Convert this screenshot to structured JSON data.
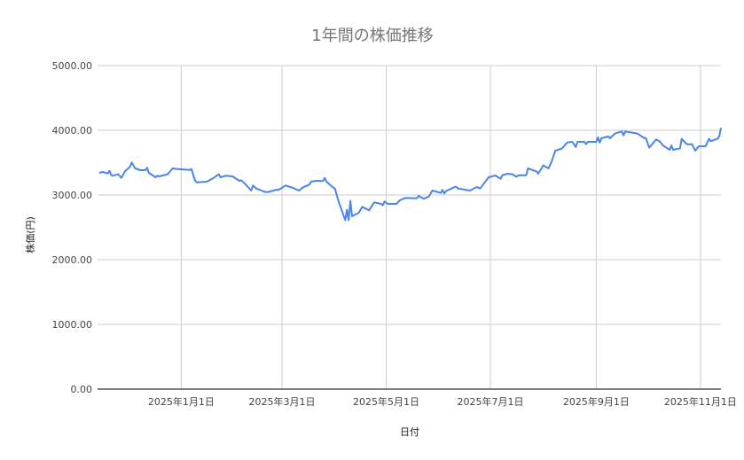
{
  "chart_data": {
    "type": "line",
    "title": "1年間の株価推移",
    "xlabel": "日付",
    "ylabel": "株価(円)",
    "ylim": [
      0,
      5000
    ],
    "xlim": [
      "2024-11-13",
      "2025-11-13"
    ],
    "grid": true,
    "legend": "none",
    "line_color": "#4a86e8",
    "y_ticks": [
      "0.00",
      "1000.00",
      "2000.00",
      "3000.00",
      "4000.00",
      "5000.00"
    ],
    "y_tick_values": [
      0,
      1000,
      2000,
      3000,
      4000,
      5000
    ],
    "x_ticks": [
      {
        "date": "2025-01-01",
        "label": "2025年1月1日"
      },
      {
        "date": "2025-03-01",
        "label": "2025年3月1日"
      },
      {
        "date": "2025-05-01",
        "label": "2025年5月1日"
      },
      {
        "date": "2025-07-01",
        "label": "2025年7月1日"
      },
      {
        "date": "2025-09-01",
        "label": "2025年9月1日"
      },
      {
        "date": "2025-11-01",
        "label": "2025年11月1日"
      }
    ],
    "series": [
      {
        "points": [
          [
            "2024-11-14",
            3342
          ],
          [
            "2024-11-16",
            3356
          ],
          [
            "2024-11-19",
            3333
          ],
          [
            "2024-11-20",
            3374
          ],
          [
            "2024-11-21",
            3310
          ],
          [
            "2024-11-22",
            3297
          ],
          [
            "2024-11-25",
            3320
          ],
          [
            "2024-11-27",
            3265
          ],
          [
            "2024-11-29",
            3365
          ],
          [
            "2024-12-02",
            3434
          ],
          [
            "2024-12-03",
            3502
          ],
          [
            "2024-12-05",
            3411
          ],
          [
            "2024-12-08",
            3384
          ],
          [
            "2024-12-11",
            3384
          ],
          [
            "2024-12-12",
            3420
          ],
          [
            "2024-12-13",
            3342
          ],
          [
            "2024-12-17",
            3274
          ],
          [
            "2024-12-18",
            3297
          ],
          [
            "2024-12-19",
            3288
          ],
          [
            "2024-12-24",
            3320
          ],
          [
            "2024-12-27",
            3411
          ],
          [
            "2024-12-30",
            3402
          ],
          [
            "2025-01-06",
            3388
          ],
          [
            "2025-01-07",
            3402
          ],
          [
            "2025-01-09",
            3228
          ],
          [
            "2025-01-10",
            3196
          ],
          [
            "2025-01-16",
            3205
          ],
          [
            "2025-01-20",
            3265
          ],
          [
            "2025-01-23",
            3320
          ],
          [
            "2025-01-24",
            3274
          ],
          [
            "2025-01-27",
            3297
          ],
          [
            "2025-01-31",
            3288
          ],
          [
            "2025-02-04",
            3219
          ],
          [
            "2025-02-05",
            3228
          ],
          [
            "2025-02-07",
            3183
          ],
          [
            "2025-02-11",
            3068
          ],
          [
            "2025-02-12",
            3146
          ],
          [
            "2025-02-14",
            3100
          ],
          [
            "2025-02-17",
            3068
          ],
          [
            "2025-02-19",
            3046
          ],
          [
            "2025-02-21",
            3046
          ],
          [
            "2025-02-26",
            3082
          ],
          [
            "2025-02-27",
            3078
          ],
          [
            "2025-03-03",
            3146
          ],
          [
            "2025-03-07",
            3114
          ],
          [
            "2025-03-11",
            3068
          ],
          [
            "2025-03-13",
            3114
          ],
          [
            "2025-03-17",
            3160
          ],
          [
            "2025-03-18",
            3205
          ],
          [
            "2025-03-21",
            3219
          ],
          [
            "2025-03-25",
            3215
          ],
          [
            "2025-03-26",
            3265
          ],
          [
            "2025-03-27",
            3205
          ],
          [
            "2025-03-31",
            3114
          ],
          [
            "2025-04-01",
            3100
          ],
          [
            "2025-04-03",
            2909
          ],
          [
            "2025-04-07",
            2612
          ],
          [
            "2025-04-08",
            2772
          ],
          [
            "2025-04-09",
            2612
          ],
          [
            "2025-04-10",
            2909
          ],
          [
            "2025-04-11",
            2671
          ],
          [
            "2025-04-15",
            2726
          ],
          [
            "2025-04-17",
            2817
          ],
          [
            "2025-04-21",
            2763
          ],
          [
            "2025-04-24",
            2886
          ],
          [
            "2025-04-28",
            2863
          ],
          [
            "2025-04-29",
            2840
          ],
          [
            "2025-04-30",
            2900
          ],
          [
            "2025-05-02",
            2863
          ],
          [
            "2025-05-07",
            2863
          ],
          [
            "2025-05-09",
            2918
          ],
          [
            "2025-05-12",
            2954
          ],
          [
            "2025-05-19",
            2950
          ],
          [
            "2025-05-20",
            2986
          ],
          [
            "2025-05-23",
            2941
          ],
          [
            "2025-05-26",
            2977
          ],
          [
            "2025-05-28",
            3068
          ],
          [
            "2025-06-02",
            3032
          ],
          [
            "2025-06-03",
            3078
          ],
          [
            "2025-06-04",
            3023
          ],
          [
            "2025-06-05",
            3059
          ],
          [
            "2025-06-10",
            3123
          ],
          [
            "2025-06-11",
            3128
          ],
          [
            "2025-06-12",
            3100
          ],
          [
            "2025-06-19",
            3068
          ],
          [
            "2025-06-23",
            3123
          ],
          [
            "2025-06-25",
            3100
          ],
          [
            "2025-06-30",
            3274
          ],
          [
            "2025-07-02",
            3288
          ],
          [
            "2025-07-04",
            3301
          ],
          [
            "2025-07-07",
            3251
          ],
          [
            "2025-07-08",
            3306
          ],
          [
            "2025-07-11",
            3329
          ],
          [
            "2025-07-14",
            3320
          ],
          [
            "2025-07-16",
            3283
          ],
          [
            "2025-07-18",
            3306
          ],
          [
            "2025-07-22",
            3306
          ],
          [
            "2025-07-23",
            3411
          ],
          [
            "2025-07-28",
            3365
          ],
          [
            "2025-07-29",
            3329
          ],
          [
            "2025-08-01",
            3457
          ],
          [
            "2025-08-04",
            3411
          ],
          [
            "2025-08-06",
            3525
          ],
          [
            "2025-08-08",
            3685
          ],
          [
            "2025-08-12",
            3721
          ],
          [
            "2025-08-15",
            3813
          ],
          [
            "2025-08-18",
            3822
          ],
          [
            "2025-08-20",
            3740
          ],
          [
            "2025-08-21",
            3822
          ],
          [
            "2025-08-25",
            3822
          ],
          [
            "2025-08-26",
            3785
          ],
          [
            "2025-08-27",
            3822
          ],
          [
            "2025-09-01",
            3822
          ],
          [
            "2025-09-02",
            3890
          ],
          [
            "2025-09-03",
            3808
          ],
          [
            "2025-09-04",
            3877
          ],
          [
            "2025-09-08",
            3904
          ],
          [
            "2025-09-09",
            3877
          ],
          [
            "2025-09-12",
            3950
          ],
          [
            "2025-09-16",
            3982
          ],
          [
            "2025-09-17",
            3922
          ],
          [
            "2025-09-18",
            3982
          ],
          [
            "2025-09-23",
            3959
          ],
          [
            "2025-09-25",
            3950
          ],
          [
            "2025-09-29",
            3881
          ],
          [
            "2025-09-30",
            3881
          ],
          [
            "2025-10-02",
            3731
          ],
          [
            "2025-10-06",
            3858
          ],
          [
            "2025-10-08",
            3831
          ],
          [
            "2025-10-10",
            3767
          ],
          [
            "2025-10-14",
            3699
          ],
          [
            "2025-10-15",
            3767
          ],
          [
            "2025-10-16",
            3699
          ],
          [
            "2025-10-20",
            3721
          ],
          [
            "2025-10-21",
            3868
          ],
          [
            "2025-10-24",
            3785
          ],
          [
            "2025-10-27",
            3785
          ],
          [
            "2025-10-29",
            3685
          ],
          [
            "2025-10-31",
            3753
          ],
          [
            "2025-11-04",
            3753
          ],
          [
            "2025-11-06",
            3868
          ],
          [
            "2025-11-07",
            3831
          ],
          [
            "2025-11-11",
            3868
          ],
          [
            "2025-11-12",
            3904
          ],
          [
            "2025-11-13",
            4037
          ]
        ]
      }
    ]
  }
}
